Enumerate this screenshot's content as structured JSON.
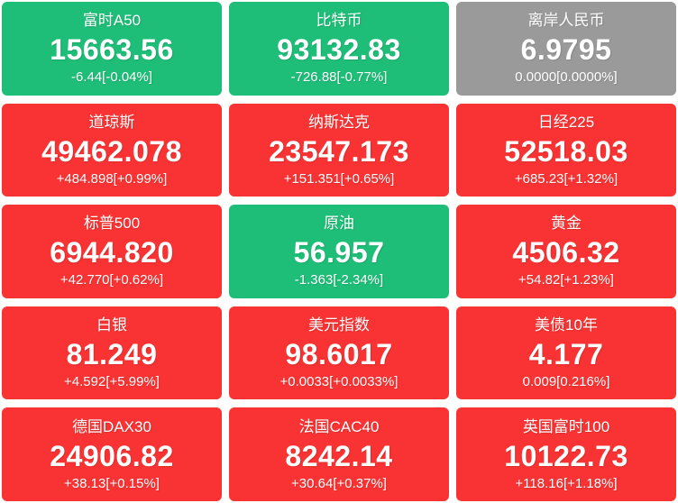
{
  "colors": {
    "up": "#F93333",
    "down": "#1EBE78",
    "flat": "#9A9A9A",
    "text": "#FFFFFF",
    "page_background": "#FFFFFF"
  },
  "tiles": [
    {
      "name": "富时A50",
      "value": "15663.56",
      "change": "-6.44[-0.04%]",
      "state": "down"
    },
    {
      "name": "比特币",
      "value": "93132.83",
      "change": "-726.88[-0.77%]",
      "state": "down"
    },
    {
      "name": "离岸人民币",
      "value": "6.9795",
      "change": "0.0000[0.0000%]",
      "state": "flat"
    },
    {
      "name": "道琼斯",
      "value": "49462.078",
      "change": "+484.898[+0.99%]",
      "state": "up"
    },
    {
      "name": "纳斯达克",
      "value": "23547.173",
      "change": "+151.351[+0.65%]",
      "state": "up"
    },
    {
      "name": "日经225",
      "value": "52518.03",
      "change": "+685.23[+1.32%]",
      "state": "up"
    },
    {
      "name": "标普500",
      "value": "6944.820",
      "change": "+42.770[+0.62%]",
      "state": "up"
    },
    {
      "name": "原油",
      "value": "56.957",
      "change": "-1.363[-2.34%]",
      "state": "down"
    },
    {
      "name": "黄金",
      "value": "4506.32",
      "change": "+54.82[+1.23%]",
      "state": "up"
    },
    {
      "name": "白银",
      "value": "81.249",
      "change": "+4.592[+5.99%]",
      "state": "up"
    },
    {
      "name": "美元指数",
      "value": "98.6017",
      "change": "+0.0033[+0.0033%]",
      "state": "up"
    },
    {
      "name": "美债10年",
      "value": "4.177",
      "change": "0.009[0.216%]",
      "state": "up"
    },
    {
      "name": "德国DAX30",
      "value": "24906.82",
      "change": "+38.13[+0.15%]",
      "state": "up"
    },
    {
      "name": "法国CAC40",
      "value": "8242.14",
      "change": "+30.64[+0.37%]",
      "state": "up"
    },
    {
      "name": "英国富时100",
      "value": "10122.73",
      "change": "+118.16[+1.18%]",
      "state": "up"
    }
  ]
}
